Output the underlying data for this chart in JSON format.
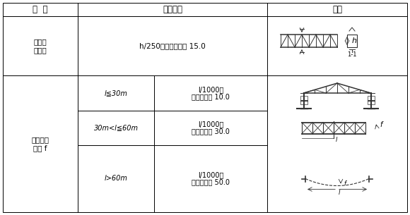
{
  "title_col1": "项  目",
  "title_col2": "允许偏差",
  "title_col3": "图例",
  "row1_item_line1": "跨中的",
  "row1_item_line2": "垂直度",
  "row1_tolerance": "h/250，且不应大于 15.0",
  "row2_item_line1": "侧向弯曲",
  "row2_item_line2": "失高 f",
  "row2_sub1_cond": "l≦30m",
  "row2_sub1_tol1": "l/1000，",
  "row2_sub1_tol2": "且不应大于 10.0",
  "row2_sub2_cond": "30m<l≦60m",
  "row2_sub2_tol1": "l/1000，",
  "row2_sub2_tol2": "且不应大于 30.0",
  "row2_sub3_cond": "l>60m",
  "row2_sub3_tol1": "l/1000，",
  "row2_sub3_tol2": "且不应大于 50.0",
  "bg_color": "#ffffff",
  "line_color": "#000000",
  "text_color": "#000000",
  "header_fontsize": 8.5,
  "body_fontsize": 7.5,
  "cond_fontsize": 7.0
}
